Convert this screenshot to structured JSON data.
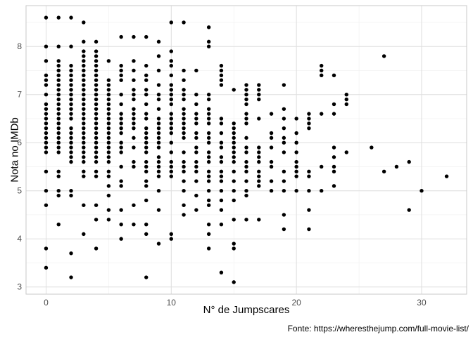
{
  "chart_data": {
    "type": "scatter",
    "title": "",
    "xlabel": "N° de Jumpscares",
    "ylabel": "Nota no IMDb",
    "caption": "Fonte: https://wheresthejump.com/full-movie-list/",
    "xlim": [
      -1.6,
      33.6
    ],
    "ylim": [
      2.85,
      8.85
    ],
    "x_ticks": [
      0,
      10,
      20,
      30
    ],
    "y_ticks": [
      3,
      4,
      5,
      6,
      7,
      8
    ],
    "x_tick_labels": [
      "0",
      "10",
      "20",
      "30"
    ],
    "y_tick_labels": [
      "3",
      "4",
      "5",
      "6",
      "7",
      "8"
    ],
    "grid": true,
    "legend": "none",
    "point_color": "#000000",
    "points": [
      [
        0,
        3.4
      ],
      [
        0,
        3.8
      ],
      [
        0,
        4.7
      ],
      [
        0,
        5.0
      ],
      [
        0,
        5.4
      ],
      [
        0,
        5.8
      ],
      [
        0,
        5.9
      ],
      [
        0,
        6.0
      ],
      [
        0,
        6.1
      ],
      [
        0,
        6.2
      ],
      [
        0,
        6.3
      ],
      [
        0,
        6.4
      ],
      [
        0,
        6.5
      ],
      [
        0,
        6.6
      ],
      [
        0,
        6.7
      ],
      [
        0,
        6.8
      ],
      [
        0,
        7.0
      ],
      [
        0,
        7.2
      ],
      [
        0,
        7.3
      ],
      [
        0,
        7.4
      ],
      [
        0,
        7.7
      ],
      [
        0,
        8.0
      ],
      [
        0,
        8.6
      ],
      [
        1,
        4.3
      ],
      [
        1,
        4.9
      ],
      [
        1,
        5.0
      ],
      [
        1,
        5.3
      ],
      [
        1,
        5.4
      ],
      [
        1,
        5.8
      ],
      [
        1,
        5.9
      ],
      [
        1,
        6.0
      ],
      [
        1,
        6.1
      ],
      [
        1,
        6.2
      ],
      [
        1,
        6.3
      ],
      [
        1,
        6.4
      ],
      [
        1,
        6.5
      ],
      [
        1,
        6.6
      ],
      [
        1,
        6.7
      ],
      [
        1,
        6.8
      ],
      [
        1,
        6.9
      ],
      [
        1,
        7.0
      ],
      [
        1,
        7.1
      ],
      [
        1,
        7.2
      ],
      [
        1,
        7.3
      ],
      [
        1,
        7.4
      ],
      [
        1,
        7.5
      ],
      [
        1,
        7.6
      ],
      [
        1,
        7.7
      ],
      [
        1,
        8.0
      ],
      [
        1,
        8.6
      ],
      [
        2,
        3.2
      ],
      [
        2,
        3.7
      ],
      [
        2,
        4.9
      ],
      [
        2,
        5.0
      ],
      [
        2,
        5.6
      ],
      [
        2,
        5.7
      ],
      [
        2,
        5.8
      ],
      [
        2,
        5.9
      ],
      [
        2,
        6.0
      ],
      [
        2,
        6.1
      ],
      [
        2,
        6.2
      ],
      [
        2,
        6.3
      ],
      [
        2,
        6.5
      ],
      [
        2,
        6.6
      ],
      [
        2,
        6.7
      ],
      [
        2,
        6.8
      ],
      [
        2,
        6.9
      ],
      [
        2,
        7.0
      ],
      [
        2,
        7.1
      ],
      [
        2,
        7.2
      ],
      [
        2,
        7.3
      ],
      [
        2,
        7.4
      ],
      [
        2,
        7.5
      ],
      [
        2,
        7.6
      ],
      [
        2,
        8.0
      ],
      [
        2,
        8.6
      ],
      [
        3,
        4.1
      ],
      [
        3,
        4.7
      ],
      [
        3,
        5.3
      ],
      [
        3,
        5.4
      ],
      [
        3,
        5.6
      ],
      [
        3,
        5.7
      ],
      [
        3,
        5.8
      ],
      [
        3,
        5.9
      ],
      [
        3,
        6.0
      ],
      [
        3,
        6.1
      ],
      [
        3,
        6.2
      ],
      [
        3,
        6.3
      ],
      [
        3,
        6.4
      ],
      [
        3,
        6.5
      ],
      [
        3,
        6.6
      ],
      [
        3,
        6.7
      ],
      [
        3,
        6.8
      ],
      [
        3,
        6.9
      ],
      [
        3,
        7.0
      ],
      [
        3,
        7.1
      ],
      [
        3,
        7.2
      ],
      [
        3,
        7.3
      ],
      [
        3,
        7.4
      ],
      [
        3,
        7.5
      ],
      [
        3,
        7.6
      ],
      [
        3,
        7.7
      ],
      [
        3,
        7.8
      ],
      [
        3,
        7.9
      ],
      [
        3,
        8.1
      ],
      [
        3,
        8.5
      ],
      [
        4,
        3.8
      ],
      [
        4,
        4.4
      ],
      [
        4,
        4.7
      ],
      [
        4,
        5.3
      ],
      [
        4,
        5.4
      ],
      [
        4,
        5.6
      ],
      [
        4,
        5.7
      ],
      [
        4,
        5.8
      ],
      [
        4,
        5.9
      ],
      [
        4,
        6.0
      ],
      [
        4,
        6.1
      ],
      [
        4,
        6.2
      ],
      [
        4,
        6.3
      ],
      [
        4,
        6.4
      ],
      [
        4,
        6.5
      ],
      [
        4,
        6.6
      ],
      [
        4,
        6.7
      ],
      [
        4,
        6.8
      ],
      [
        4,
        6.9
      ],
      [
        4,
        7.0
      ],
      [
        4,
        7.1
      ],
      [
        4,
        7.2
      ],
      [
        4,
        7.3
      ],
      [
        4,
        7.4
      ],
      [
        4,
        7.5
      ],
      [
        4,
        7.6
      ],
      [
        4,
        7.7
      ],
      [
        4,
        7.8
      ],
      [
        4,
        7.9
      ],
      [
        4,
        8.1
      ],
      [
        5,
        4.4
      ],
      [
        5,
        4.6
      ],
      [
        5,
        4.9
      ],
      [
        5,
        5.1
      ],
      [
        5,
        5.3
      ],
      [
        5,
        5.4
      ],
      [
        5,
        5.6
      ],
      [
        5,
        5.7
      ],
      [
        5,
        5.8
      ],
      [
        5,
        5.9
      ],
      [
        5,
        6.0
      ],
      [
        5,
        6.1
      ],
      [
        5,
        6.2
      ],
      [
        5,
        6.3
      ],
      [
        5,
        6.4
      ],
      [
        5,
        6.5
      ],
      [
        5,
        6.6
      ],
      [
        5,
        6.7
      ],
      [
        5,
        6.8
      ],
      [
        5,
        6.9
      ],
      [
        5,
        7.0
      ],
      [
        5,
        7.1
      ],
      [
        5,
        7.2
      ],
      [
        5,
        7.3
      ],
      [
        5,
        7.7
      ],
      [
        6,
        4.0
      ],
      [
        6,
        4.3
      ],
      [
        6,
        4.6
      ],
      [
        6,
        5.1
      ],
      [
        6,
        5.2
      ],
      [
        6,
        5.5
      ],
      [
        6,
        5.8
      ],
      [
        6,
        5.9
      ],
      [
        6,
        6.0
      ],
      [
        6,
        6.2
      ],
      [
        6,
        6.3
      ],
      [
        6,
        6.4
      ],
      [
        6,
        6.5
      ],
      [
        6,
        6.6
      ],
      [
        6,
        6.8
      ],
      [
        6,
        7.0
      ],
      [
        6,
        7.3
      ],
      [
        6,
        7.4
      ],
      [
        6,
        7.5
      ],
      [
        6,
        7.6
      ],
      [
        6,
        8.2
      ],
      [
        7,
        4.3
      ],
      [
        7,
        4.7
      ],
      [
        7,
        5.5
      ],
      [
        7,
        5.6
      ],
      [
        7,
        5.9
      ],
      [
        7,
        6.1
      ],
      [
        7,
        6.3
      ],
      [
        7,
        6.4
      ],
      [
        7,
        6.5
      ],
      [
        7,
        6.6
      ],
      [
        7,
        6.7
      ],
      [
        7,
        6.9
      ],
      [
        7,
        7.0
      ],
      [
        7,
        7.1
      ],
      [
        7,
        7.3
      ],
      [
        7,
        7.5
      ],
      [
        7,
        7.7
      ],
      [
        7,
        8.2
      ],
      [
        8,
        3.2
      ],
      [
        8,
        4.1
      ],
      [
        8,
        4.3
      ],
      [
        8,
        4.8
      ],
      [
        8,
        5.1
      ],
      [
        8,
        5.2
      ],
      [
        8,
        5.4
      ],
      [
        8,
        5.5
      ],
      [
        8,
        5.6
      ],
      [
        8,
        5.8
      ],
      [
        8,
        5.9
      ],
      [
        8,
        6.0
      ],
      [
        8,
        6.1
      ],
      [
        8,
        6.2
      ],
      [
        8,
        6.3
      ],
      [
        8,
        6.5
      ],
      [
        8,
        6.6
      ],
      [
        8,
        6.8
      ],
      [
        8,
        7.0
      ],
      [
        8,
        7.1
      ],
      [
        8,
        7.3
      ],
      [
        8,
        7.4
      ],
      [
        8,
        7.6
      ],
      [
        8,
        8.2
      ],
      [
        9,
        3.9
      ],
      [
        9,
        4.6
      ],
      [
        9,
        5.0
      ],
      [
        9,
        5.3
      ],
      [
        9,
        5.4
      ],
      [
        9,
        5.5
      ],
      [
        9,
        5.6
      ],
      [
        9,
        5.7
      ],
      [
        9,
        5.9
      ],
      [
        9,
        6.0
      ],
      [
        9,
        6.1
      ],
      [
        9,
        6.2
      ],
      [
        9,
        6.3
      ],
      [
        9,
        6.4
      ],
      [
        9,
        6.5
      ],
      [
        9,
        6.7
      ],
      [
        9,
        6.9
      ],
      [
        9,
        7.0
      ],
      [
        9,
        7.2
      ],
      [
        9,
        7.5
      ],
      [
        9,
        7.8
      ],
      [
        9,
        8.1
      ],
      [
        10,
        4.0
      ],
      [
        10,
        4.1
      ],
      [
        10,
        5.3
      ],
      [
        10,
        5.4
      ],
      [
        10,
        5.5
      ],
      [
        10,
        5.6
      ],
      [
        10,
        5.8
      ],
      [
        10,
        6.0
      ],
      [
        10,
        6.2
      ],
      [
        10,
        6.3
      ],
      [
        10,
        6.4
      ],
      [
        10,
        6.5
      ],
      [
        10,
        6.6
      ],
      [
        10,
        6.8
      ],
      [
        10,
        6.9
      ],
      [
        10,
        7.0
      ],
      [
        10,
        7.1
      ],
      [
        10,
        7.2
      ],
      [
        10,
        7.4
      ],
      [
        10,
        7.6
      ],
      [
        10,
        7.7
      ],
      [
        10,
        7.9
      ],
      [
        10,
        8.5
      ],
      [
        11,
        4.5
      ],
      [
        11,
        4.7
      ],
      [
        11,
        5.0
      ],
      [
        11,
        5.2
      ],
      [
        11,
        5.4
      ],
      [
        11,
        5.5
      ],
      [
        11,
        5.6
      ],
      [
        11,
        5.8
      ],
      [
        11,
        6.1
      ],
      [
        11,
        6.2
      ],
      [
        11,
        6.3
      ],
      [
        11,
        6.4
      ],
      [
        11,
        6.5
      ],
      [
        11,
        6.6
      ],
      [
        11,
        6.7
      ],
      [
        11,
        6.9
      ],
      [
        11,
        7.0
      ],
      [
        11,
        7.1
      ],
      [
        11,
        7.3
      ],
      [
        11,
        7.5
      ],
      [
        11,
        8.5
      ],
      [
        12,
        4.6
      ],
      [
        12,
        4.9
      ],
      [
        12,
        5.2
      ],
      [
        12,
        5.4
      ],
      [
        12,
        5.5
      ],
      [
        12,
        5.6
      ],
      [
        12,
        5.8
      ],
      [
        12,
        5.9
      ],
      [
        12,
        6.1
      ],
      [
        12,
        6.2
      ],
      [
        12,
        6.4
      ],
      [
        12,
        6.5
      ],
      [
        12,
        6.6
      ],
      [
        12,
        6.8
      ],
      [
        12,
        7.0
      ],
      [
        12,
        7.5
      ],
      [
        13,
        3.8
      ],
      [
        13,
        4.1
      ],
      [
        13,
        4.3
      ],
      [
        13,
        4.7
      ],
      [
        13,
        4.8
      ],
      [
        13,
        5.0
      ],
      [
        13,
        5.2
      ],
      [
        13,
        5.3
      ],
      [
        13,
        5.4
      ],
      [
        13,
        5.6
      ],
      [
        13,
        5.7
      ],
      [
        13,
        5.8
      ],
      [
        13,
        6.0
      ],
      [
        13,
        6.1
      ],
      [
        13,
        6.2
      ],
      [
        13,
        6.4
      ],
      [
        13,
        6.5
      ],
      [
        13,
        6.6
      ],
      [
        13,
        6.7
      ],
      [
        13,
        6.9
      ],
      [
        13,
        7.0
      ],
      [
        13,
        8.0
      ],
      [
        13,
        8.1
      ],
      [
        13,
        8.4
      ],
      [
        14,
        3.3
      ],
      [
        14,
        4.3
      ],
      [
        14,
        4.6
      ],
      [
        14,
        4.8
      ],
      [
        14,
        5.0
      ],
      [
        14,
        5.2
      ],
      [
        14,
        5.3
      ],
      [
        14,
        5.4
      ],
      [
        14,
        5.6
      ],
      [
        14,
        5.7
      ],
      [
        14,
        5.9
      ],
      [
        14,
        6.0
      ],
      [
        14,
        6.2
      ],
      [
        14,
        6.4
      ],
      [
        14,
        6.5
      ],
      [
        14,
        7.2
      ],
      [
        14,
        7.3
      ],
      [
        14,
        7.4
      ],
      [
        14,
        7.5
      ],
      [
        14,
        7.6
      ],
      [
        15,
        3.1
      ],
      [
        15,
        3.8
      ],
      [
        15,
        3.9
      ],
      [
        15,
        4.4
      ],
      [
        15,
        4.8
      ],
      [
        15,
        5.0
      ],
      [
        15,
        5.2
      ],
      [
        15,
        5.4
      ],
      [
        15,
        5.6
      ],
      [
        15,
        5.7
      ],
      [
        15,
        5.8
      ],
      [
        15,
        5.9
      ],
      [
        15,
        6.0
      ],
      [
        15,
        6.1
      ],
      [
        15,
        6.2
      ],
      [
        15,
        6.3
      ],
      [
        15,
        6.4
      ],
      [
        15,
        7.1
      ],
      [
        16,
        4.4
      ],
      [
        16,
        4.9
      ],
      [
        16,
        5.0
      ],
      [
        16,
        5.2
      ],
      [
        16,
        5.4
      ],
      [
        16,
        5.5
      ],
      [
        16,
        5.6
      ],
      [
        16,
        5.8
      ],
      [
        16,
        5.9
      ],
      [
        16,
        6.1
      ],
      [
        16,
        6.4
      ],
      [
        16,
        6.5
      ],
      [
        16,
        6.6
      ],
      [
        16,
        6.8
      ],
      [
        16,
        6.9
      ],
      [
        16,
        7.0
      ],
      [
        16,
        7.1
      ],
      [
        16,
        7.2
      ],
      [
        17,
        4.4
      ],
      [
        17,
        5.1
      ],
      [
        17,
        5.2
      ],
      [
        17,
        5.3
      ],
      [
        17,
        5.4
      ],
      [
        17,
        5.6
      ],
      [
        17,
        5.7
      ],
      [
        17,
        5.8
      ],
      [
        17,
        5.9
      ],
      [
        17,
        6.5
      ],
      [
        17,
        6.9
      ],
      [
        17,
        7.0
      ],
      [
        17,
        7.1
      ],
      [
        17,
        7.2
      ],
      [
        18,
        5.0
      ],
      [
        18,
        5.2
      ],
      [
        18,
        5.5
      ],
      [
        18,
        5.6
      ],
      [
        18,
        5.9
      ],
      [
        18,
        6.1
      ],
      [
        18,
        6.2
      ],
      [
        18,
        6.6
      ],
      [
        19,
        4.2
      ],
      [
        19,
        4.5
      ],
      [
        19,
        5.0
      ],
      [
        19,
        5.2
      ],
      [
        19,
        5.4
      ],
      [
        19,
        5.8
      ],
      [
        19,
        6.0
      ],
      [
        19,
        6.1
      ],
      [
        19,
        6.3
      ],
      [
        19,
        6.5
      ],
      [
        19,
        6.7
      ],
      [
        19,
        7.2
      ],
      [
        20,
        5.0
      ],
      [
        20,
        5.3
      ],
      [
        20,
        5.4
      ],
      [
        20,
        5.5
      ],
      [
        20,
        5.6
      ],
      [
        20,
        5.8
      ],
      [
        20,
        6.0
      ],
      [
        20,
        6.2
      ],
      [
        20,
        6.5
      ],
      [
        21,
        4.2
      ],
      [
        21,
        4.6
      ],
      [
        21,
        5.0
      ],
      [
        21,
        5.3
      ],
      [
        21,
        5.4
      ],
      [
        21,
        6.3
      ],
      [
        21,
        6.4
      ],
      [
        21,
        6.5
      ],
      [
        21,
        6.6
      ],
      [
        22,
        5.0
      ],
      [
        22,
        5.5
      ],
      [
        22,
        6.6
      ],
      [
        22,
        7.4
      ],
      [
        22,
        7.5
      ],
      [
        22,
        7.6
      ],
      [
        23,
        5.1
      ],
      [
        23,
        5.4
      ],
      [
        23,
        5.5
      ],
      [
        23,
        5.7
      ],
      [
        23,
        5.9
      ],
      [
        23,
        6.6
      ],
      [
        23,
        6.8
      ],
      [
        23,
        7.4
      ],
      [
        24,
        5.8
      ],
      [
        24,
        6.8
      ],
      [
        24,
        6.9
      ],
      [
        24,
        7.0
      ],
      [
        26,
        5.9
      ],
      [
        27,
        5.4
      ],
      [
        27,
        7.8
      ],
      [
        28,
        5.5
      ],
      [
        29,
        4.6
      ],
      [
        29,
        5.6
      ],
      [
        30,
        5.0
      ],
      [
        32,
        5.3
      ]
    ]
  }
}
